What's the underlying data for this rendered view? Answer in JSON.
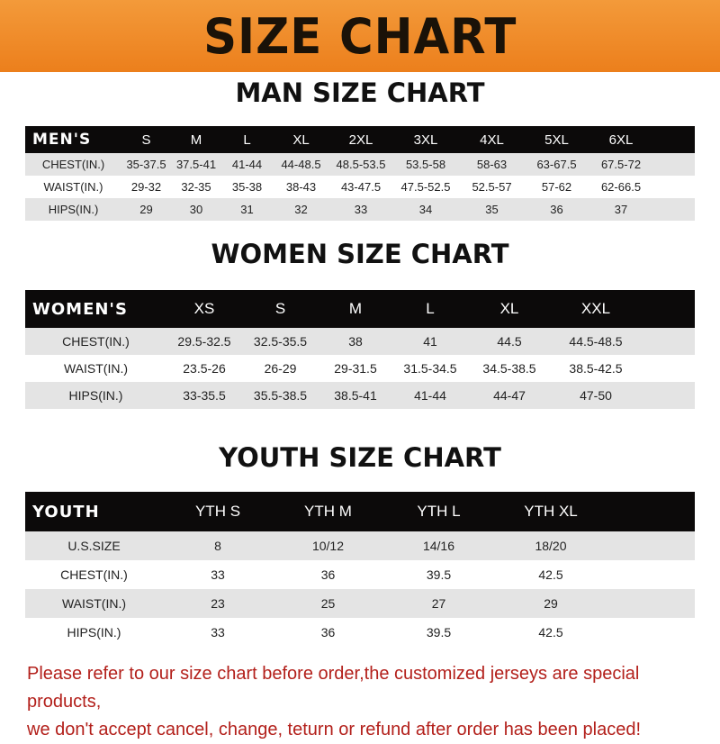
{
  "title": "SIZE CHART",
  "colors": {
    "banner": "#ee8a28",
    "header_row": "#0c0a0a",
    "note": "#b3201b"
  },
  "men": {
    "title": "MAN SIZE CHART",
    "header": "MEN'S",
    "sizes": [
      "S",
      "M",
      "L",
      "XL",
      "2XL",
      "3XL",
      "4XL",
      "5XL",
      "6XL"
    ],
    "rows": [
      {
        "label": "CHEST(IN.)",
        "values": [
          "35-37.5",
          "37.5-41",
          "41-44",
          "44-48.5",
          "48.5-53.5",
          "53.5-58",
          "58-63",
          "63-67.5",
          "67.5-72"
        ]
      },
      {
        "label": "WAIST(IN.)",
        "values": [
          "29-32",
          "32-35",
          "35-38",
          "38-43",
          "43-47.5",
          "47.5-52.5",
          "52.5-57",
          "57-62",
          "62-66.5"
        ]
      },
      {
        "label": "HIPS(IN.)",
        "values": [
          "29",
          "30",
          "31",
          "32",
          "33",
          "34",
          "35",
          "36",
          "37"
        ]
      }
    ]
  },
  "women": {
    "title": "WOMEN SIZE CHART",
    "header": "WOMEN'S",
    "sizes": [
      "XS",
      "S",
      "M",
      "L",
      "XL",
      "XXL"
    ],
    "rows": [
      {
        "label": "CHEST(IN.)",
        "values": [
          "29.5-32.5",
          "32.5-35.5",
          "38",
          "41",
          "44.5",
          "44.5-48.5"
        ]
      },
      {
        "label": "WAIST(IN.)",
        "values": [
          "23.5-26",
          "26-29",
          "29-31.5",
          "31.5-34.5",
          "34.5-38.5",
          "38.5-42.5"
        ]
      },
      {
        "label": "HIPS(IN.)",
        "values": [
          "33-35.5",
          "35.5-38.5",
          "38.5-41",
          "41-44",
          "44-47",
          "47-50"
        ]
      }
    ]
  },
  "youth": {
    "title": "YOUTH SIZE CHART",
    "header": "YOUTH",
    "sizes": [
      "YTH S",
      "YTH M",
      "YTH L",
      "YTH XL"
    ],
    "rows": [
      {
        "label": "U.S.SIZE",
        "values": [
          "8",
          "10/12",
          "14/16",
          "18/20"
        ]
      },
      {
        "label": "CHEST(IN.)",
        "values": [
          "33",
          "36",
          "39.5",
          "42.5"
        ]
      },
      {
        "label": "WAIST(IN.)",
        "values": [
          "23",
          "25",
          "27",
          "29"
        ]
      },
      {
        "label": "HIPS(IN.)",
        "values": [
          "33",
          "36",
          "39.5",
          "42.5"
        ]
      }
    ]
  },
  "note": {
    "line1": "Please refer to our size chart before order,the customized jerseys are special products,",
    "line2": "we don't accept cancel, change, teturn or refund after order has been placed!"
  }
}
